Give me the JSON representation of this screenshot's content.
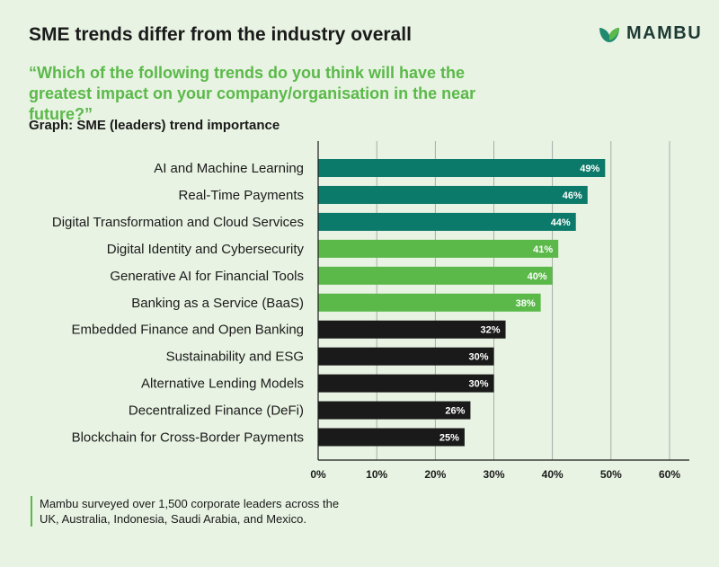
{
  "header": {
    "title": "SME trends differ from the industry overall",
    "logo_text": "MAMBU",
    "question": "“Which of the following trends do you think will have the greatest impact on your company/organisation in the near future?”",
    "subtitle": "Graph: SME (leaders) trend importance"
  },
  "footnote": "Mambu surveyed over 1,500 corporate leaders across the UK, Australia, Indonesia, Saudi Arabia, and Mexico.",
  "colors": {
    "teal": "#0c7a6a",
    "green": "#5bb94a",
    "black": "#1a1a1a",
    "background": "#e8f3e3",
    "grid": "#9a9a9a"
  },
  "chart_data": {
    "type": "bar",
    "orientation": "horizontal",
    "title": "Graph: SME (leaders) trend importance",
    "categories": [
      "AI and Machine Learning",
      "Real-Time Payments",
      "Digital Transformation and Cloud Services",
      "Digital Identity and Cybersecurity",
      "Generative AI for Financial Tools",
      "Banking as a Service (BaaS)",
      "Embedded Finance and Open Banking",
      "Sustainability and ESG",
      "Alternative Lending Models",
      "Decentralized Finance (DeFi)",
      "Blockchain for Cross-Border Payments"
    ],
    "values": [
      49,
      46,
      44,
      41,
      40,
      38,
      32,
      30,
      30,
      26,
      25
    ],
    "value_labels": [
      "49%",
      "46%",
      "44%",
      "41%",
      "40%",
      "38%",
      "32%",
      "30%",
      "30%",
      "26%",
      "25%"
    ],
    "bar_colors": [
      "teal",
      "teal",
      "teal",
      "green",
      "green",
      "green",
      "black",
      "black",
      "black",
      "black",
      "black"
    ],
    "xlim": [
      0,
      60
    ],
    "xticks": [
      0,
      10,
      20,
      30,
      40,
      50,
      60
    ],
    "xtick_labels": [
      "0%",
      "10%",
      "20%",
      "30%",
      "40%",
      "50%",
      "60%"
    ],
    "grid": true,
    "xlabel": "",
    "ylabel": ""
  }
}
